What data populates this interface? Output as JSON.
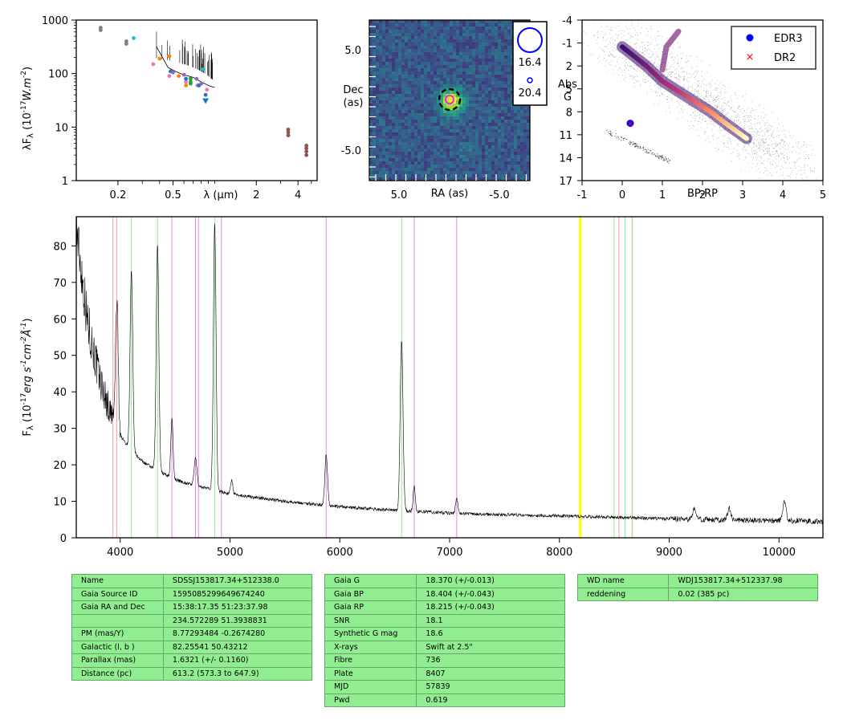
{
  "chart_data": [
    {
      "type": "scatter",
      "xlabel": "λ (μm)",
      "ylabel": "λF_λ (10^-17 W.m^-2)",
      "x_scale": "log",
      "y_scale": "log",
      "xlim": [
        0.1,
        5.5
      ],
      "ylim": [
        1,
        1000
      ],
      "x_ticks": [
        "0.2",
        "0.5",
        "2",
        "4"
      ],
      "y_ticks": [
        "1",
        "10",
        "100",
        "1000"
      ],
      "series": [
        {
          "color": "#7f7f7f",
          "points": [
            [
              0.15,
              720
            ],
            [
              0.15,
              650
            ],
            [
              0.23,
              400
            ],
            [
              0.23,
              360
            ]
          ]
        },
        {
          "color": "#17becf",
          "points": [
            [
              0.26,
              460
            ],
            [
              0.82,
              120
            ]
          ]
        },
        {
          "color": "#e377c2",
          "points": [
            [
              0.36,
              150
            ],
            [
              0.47,
              90
            ],
            [
              0.62,
              70
            ],
            [
              0.75,
              60
            ],
            [
              0.88,
              50
            ]
          ]
        },
        {
          "color": "#ff7f0e",
          "points": [
            [
              0.4,
              190
            ],
            [
              0.47,
              210
            ],
            [
              0.55,
              90
            ],
            [
              0.62,
              60
            ]
          ]
        },
        {
          "color": "#1f77b4",
          "points": [
            [
              0.48,
              110
            ],
            [
              0.62,
              80
            ],
            [
              0.77,
              60
            ],
            [
              0.86,
              40
            ]
          ]
        },
        {
          "color": "#2ca02c",
          "points": [
            [
              0.67,
              80
            ],
            [
              0.67,
              70
            ],
            [
              0.67,
              65
            ]
          ]
        },
        {
          "color": "#9467bd",
          "points": [
            [
              0.5,
              105
            ],
            [
              0.6,
              95
            ],
            [
              0.74,
              80
            ],
            [
              0.8,
              65
            ]
          ]
        },
        {
          "color": "#8c564b",
          "points": [
            [
              3.4,
              9
            ],
            [
              3.4,
              8
            ],
            [
              3.4,
              7
            ],
            [
              4.6,
              4.5
            ],
            [
              4.6,
              4.0
            ],
            [
              4.6,
              3.5
            ],
            [
              4.6,
              3.0
            ]
          ]
        }
      ],
      "sed_curve": [
        [
          0.38,
          320
        ],
        [
          0.42,
          200
        ],
        [
          0.46,
          130
        ],
        [
          0.52,
          110
        ],
        [
          0.6,
          95
        ],
        [
          0.7,
          85
        ],
        [
          0.8,
          70
        ],
        [
          0.9,
          60
        ],
        [
          1.0,
          55
        ]
      ]
    },
    {
      "type": "heatmap",
      "xlabel": "RA (as)",
      "ylabel": "Dec (as)",
      "x_ticks": [
        "5.0",
        "-5.0"
      ],
      "y_ticks": [
        "5.0",
        "-5.0"
      ],
      "legend": {
        "placement": "top-right",
        "entries": [
          "16.4",
          "20.4"
        ]
      }
    },
    {
      "type": "scatter",
      "xlabel": "BP-RP",
      "ylabel": "Abs G",
      "xlim": [
        -1,
        5
      ],
      "ylim": [
        17,
        -4
      ],
      "x_ticks": [
        "-1",
        "0",
        "1",
        "2",
        "3",
        "4",
        "5"
      ],
      "y_ticks": [
        "-4",
        "-1",
        "2",
        "5",
        "8",
        "11",
        "14",
        "17"
      ],
      "legend": {
        "placement": "top-right",
        "entries": [
          "EDR3",
          "DR2"
        ]
      },
      "target": {
        "bp_rp": 0.2,
        "abs_g": 9.5
      }
    },
    {
      "type": "line",
      "xlabel": "",
      "ylabel": "F_λ (10^-17 erg s^-1 cm^-2 Å^-1)",
      "xlim": [
        3600,
        10400
      ],
      "ylim": [
        0,
        88
      ],
      "x_ticks": [
        "4000",
        "5000",
        "6000",
        "7000",
        "8000",
        "9000",
        "10000"
      ],
      "y_ticks": [
        "0",
        "10",
        "20",
        "30",
        "40",
        "50",
        "60",
        "70",
        "80"
      ],
      "continuum": [
        [
          3600,
          85
        ],
        [
          3700,
          60
        ],
        [
          3800,
          45
        ],
        [
          3900,
          35
        ],
        [
          4000,
          28
        ],
        [
          4100,
          24
        ],
        [
          4200,
          21
        ],
        [
          4300,
          19
        ],
        [
          4400,
          17.5
        ],
        [
          4500,
          16
        ],
        [
          4600,
          15
        ],
        [
          4800,
          13.5
        ],
        [
          5000,
          12
        ],
        [
          5500,
          10
        ],
        [
          6000,
          8.5
        ],
        [
          6500,
          7.5
        ],
        [
          7000,
          6.8
        ],
        [
          7500,
          6.3
        ],
        [
          8000,
          6.0
        ],
        [
          8500,
          5.6
        ],
        [
          9000,
          5.2
        ],
        [
          9500,
          4.9
        ],
        [
          10000,
          4.7
        ],
        [
          10400,
          4.5
        ]
      ],
      "emission_lines": [
        {
          "x": 3970,
          "peak": 65,
          "width": 12
        },
        {
          "x": 4102,
          "peak": 73,
          "width": 12
        },
        {
          "x": 4340,
          "peak": 80,
          "width": 12
        },
        {
          "x": 4471,
          "peak": 33,
          "width": 10
        },
        {
          "x": 4686,
          "peak": 22,
          "width": 12
        },
        {
          "x": 4861,
          "peak": 86,
          "width": 12
        },
        {
          "x": 5015,
          "peak": 16,
          "width": 10
        },
        {
          "x": 5876,
          "peak": 23,
          "width": 12
        },
        {
          "x": 6563,
          "peak": 54,
          "width": 13
        },
        {
          "x": 6678,
          "peak": 14,
          "width": 10
        },
        {
          "x": 7065,
          "peak": 11,
          "width": 10
        },
        {
          "x": 9229,
          "peak": 8,
          "width": 15
        },
        {
          "x": 9546,
          "peak": 8,
          "width": 15
        },
        {
          "x": 10049,
          "peak": 10,
          "width": 15
        }
      ],
      "marker_lines": [
        {
          "x": 3934,
          "color": "#ff9999"
        },
        {
          "x": 3968,
          "color": "#ff9999"
        },
        {
          "x": 4102,
          "color": "#90ee90"
        },
        {
          "x": 4340,
          "color": "#90ee90"
        },
        {
          "x": 4471,
          "color": "#ee82ee"
        },
        {
          "x": 4686,
          "color": "#ee82ee"
        },
        {
          "x": 4713,
          "color": "#ee82ee"
        },
        {
          "x": 4861,
          "color": "#90ee90"
        },
        {
          "x": 4922,
          "color": "#ee82ee"
        },
        {
          "x": 5876,
          "color": "#ee82ee"
        },
        {
          "x": 6563,
          "color": "#90ee90"
        },
        {
          "x": 6678,
          "color": "#ee82ee"
        },
        {
          "x": 7065,
          "color": "#ee82ee"
        },
        {
          "x": 8183,
          "color": "#ffff00"
        },
        {
          "x": 8195,
          "color": "#ffff00"
        },
        {
          "x": 8498,
          "color": "#90ee90"
        },
        {
          "x": 8542,
          "color": "#ff9999"
        },
        {
          "x": 8598,
          "color": "#90ee90"
        },
        {
          "x": 8662,
          "color": "#ff9999"
        },
        {
          "x": 8665,
          "color": "#90ee90"
        }
      ]
    }
  ],
  "tables": {
    "left": [
      [
        "Name",
        "SDSSJ153817.34+512338.0"
      ],
      [
        "Gaia Source ID",
        "1595085299649674240"
      ],
      [
        "Gaia RA and Dec",
        "15:38:17.35    51:23:37.98"
      ],
      [
        "",
        "234.572289    51.3938831"
      ],
      [
        "PM (mas/Y)",
        "8.77293484    -0.2674280"
      ],
      [
        "Galactic (l, b )",
        "82.25541    50.43212"
      ],
      [
        "Parallax (mas)",
        "1.6321 (+/- 0.1160)"
      ],
      [
        "Distance (pc)",
        "613.2 (573.3 to 647.9)"
      ]
    ],
    "middle": [
      [
        "Gaia G",
        "18.370 (+/-0.013)"
      ],
      [
        "Gaia BP",
        "18.404 (+/-0.043)"
      ],
      [
        "Gaia RP",
        "18.215 (+/-0.043)"
      ],
      [
        "SNR",
        "18.1"
      ],
      [
        "Synthetic G mag",
        "18.6"
      ],
      [
        "X-rays",
        "Swift at 2.5\""
      ],
      [
        "Fibre",
        "736"
      ],
      [
        "Plate",
        "8407"
      ],
      [
        "MJD",
        "57839"
      ],
      [
        "Pwd",
        "0.619"
      ]
    ],
    "right": [
      [
        "WD name",
        "WDJ153817.34+512337.98"
      ],
      [
        "reddening",
        "0.02 (385 pc)"
      ]
    ]
  }
}
